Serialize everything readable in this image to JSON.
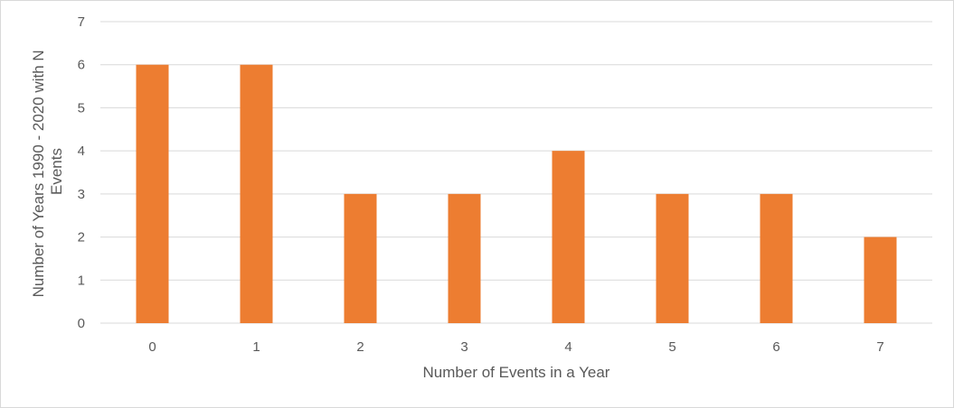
{
  "chart_data": {
    "type": "bar",
    "title": "",
    "xlabel": "Number of Events in a Year",
    "ylabel_lines": [
      "Number of Years 1990 - 2020 with N",
      "Events"
    ],
    "categories": [
      "0",
      "1",
      "2",
      "3",
      "4",
      "5",
      "6",
      "7"
    ],
    "values": [
      6,
      6,
      3,
      3,
      4,
      3,
      3,
      2
    ],
    "ylim": [
      0,
      7
    ],
    "yticks": [
      "0",
      "1",
      "2",
      "3",
      "4",
      "5",
      "6",
      "7"
    ],
    "grid": true,
    "legend": "none",
    "bar_color": "#ED7D31",
    "gridline_color": "#D9D9D9"
  }
}
